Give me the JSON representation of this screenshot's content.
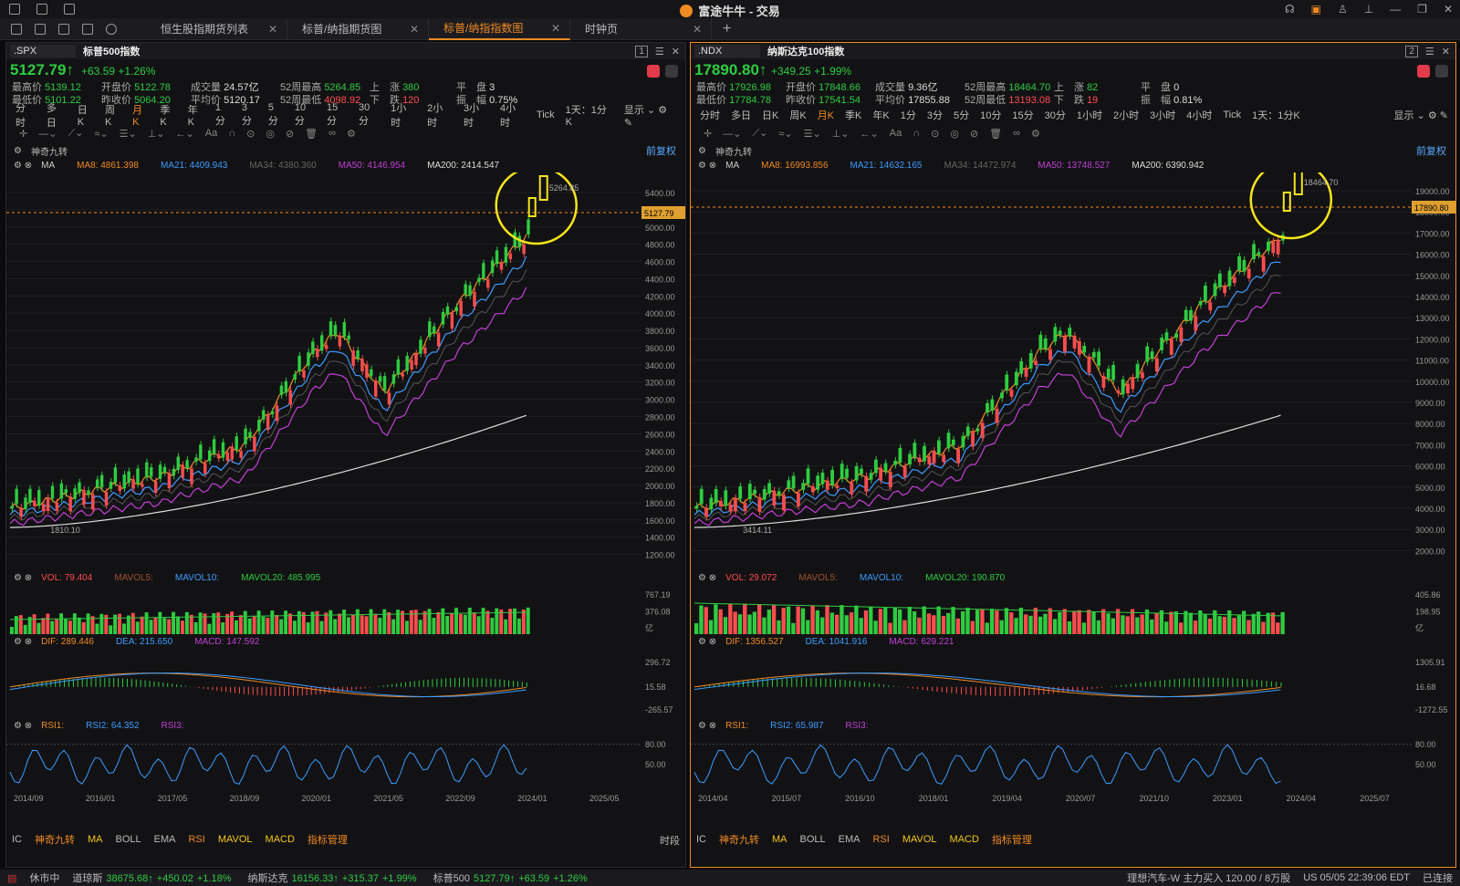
{
  "window": {
    "title": "富途牛牛 - 交易"
  },
  "tabs": [
    {
      "label": "恒生股指期货列表"
    },
    {
      "label": "标普/纳指期货图"
    },
    {
      "label": "标普/纳指指数图",
      "active": true
    },
    {
      "label": "时钟页"
    }
  ],
  "panels": [
    {
      "num": "1",
      "code": ".SPX",
      "name": "标普500指数",
      "price": "5127.79↑",
      "change": "+63.59",
      "pct": "+1.26%",
      "stats": [
        [
          "最高价",
          "5139.12",
          "开盘价",
          "5122.78",
          "成交量",
          "24.57亿",
          "52周最高",
          "5264.85",
          "上　涨",
          "380",
          "平　盘",
          "3"
        ],
        [
          "最低价",
          "5101.22",
          "昨收价",
          "5064.20",
          "平均价",
          "5120.17",
          "52周最低",
          "4098.92",
          "下　跌",
          "120",
          "振　幅",
          "0.75%"
        ]
      ],
      "ma": {
        "label": "MA",
        "ma8": "MA8: 4861.398",
        "ma21": "MA21: 4409.943",
        "ma34": "MA34: 4380.360",
        "ma50": "MA50: 4146.954",
        "ma200": "MA200: 2414.547"
      },
      "price_axis": [
        "5400.00",
        "5200.00",
        "5000.00",
        "4800.00",
        "4600.00",
        "4400.00",
        "4200.00",
        "4000.00",
        "3800.00",
        "3600.00",
        "3400.00",
        "3200.00",
        "3000.00",
        "2800.00",
        "2600.00",
        "2400.00",
        "2200.00",
        "2000.00",
        "1800.00",
        "1600.00",
        "1400.00",
        "1200.00"
      ],
      "last_price_tag": "5127.79",
      "high_label": "5264.85",
      "low_label": "1810.10",
      "mavol": {
        "vol": "VOL: 79.404",
        "ma5": "MAVOL5:",
        "ma10": "MAVOL10:",
        "ma20": "MAVOL20: 485.995",
        "axis": [
          "767.19",
          "376.08",
          "亿"
        ]
      },
      "macd": {
        "dif": "DIF: 289.446",
        "dea": "DEA: 215.650",
        "macd": "MACD: 147.592",
        "axis": [
          "296.72",
          "15.58",
          "-265.57"
        ]
      },
      "rsi": {
        "rsi1": "RSI1:",
        "rsi2": "RSI2: 64.352",
        "rsi3": "RSI3:",
        "axis": [
          "80.00",
          "50.00"
        ]
      },
      "dates": [
        "2014/09",
        "2016/01",
        "2017/05",
        "2018/09",
        "2020/01",
        "2021/05",
        "2022/09",
        "2024/01",
        "2025/05"
      ]
    },
    {
      "num": "2",
      "code": ".NDX",
      "name": "纳斯达克100指数",
      "price": "17890.80↑",
      "change": "+349.25",
      "pct": "+1.99%",
      "stats": [
        [
          "最高价",
          "17926.98",
          "开盘价",
          "17848.66",
          "成交量",
          "9.36亿",
          "52周最高",
          "18464.70",
          "上　涨",
          "82",
          "平　盘",
          "0"
        ],
        [
          "最低价",
          "17784.78",
          "昨收价",
          "17541.54",
          "平均价",
          "17855.88",
          "52周最低",
          "13193.08",
          "下　跌",
          "19",
          "振　幅",
          "0.81%"
        ]
      ],
      "ma": {
        "label": "MA",
        "ma8": "MA8: 16993.856",
        "ma21": "MA21: 14632.165",
        "ma34": "MA34: 14472.974",
        "ma50": "MA50: 13748.527",
        "ma200": "MA200: 6390.942"
      },
      "price_axis": [
        "19000.00",
        "18000.00",
        "17000.00",
        "16000.00",
        "15000.00",
        "14000.00",
        "13000.00",
        "12000.00",
        "11000.00",
        "10000.00",
        "9000.00",
        "8000.00",
        "7000.00",
        "6000.00",
        "5000.00",
        "4000.00",
        "3000.00",
        "2000.00"
      ],
      "last_price_tag": "17890.80",
      "high_label": "18464.70",
      "low_label": "3414.11",
      "mavol": {
        "vol": "VOL: 29.072",
        "ma5": "MAVOL5:",
        "ma10": "MAVOL10:",
        "ma20": "MAVOL20: 190.870",
        "axis": [
          "405.86",
          "198.95",
          "亿"
        ]
      },
      "macd": {
        "dif": "DIF: 1356.527",
        "dea": "DEA: 1041.916",
        "macd": "MACD: 629.221",
        "axis": [
          "1305.91",
          "16.68",
          "-1272.55"
        ]
      },
      "rsi": {
        "rsi1": "RSI1:",
        "rsi2": "RSI2: 65.987",
        "rsi3": "RSI3:",
        "axis": [
          "80.00",
          "50.00"
        ]
      },
      "dates": [
        "2014/04",
        "2015/07",
        "2016/10",
        "2018/01",
        "2019/04",
        "2020/07",
        "2021/10",
        "2023/01",
        "2024/04",
        "2025/07"
      ]
    }
  ],
  "periods": [
    "分时",
    "多日",
    "日K",
    "周K",
    "月K",
    "季K",
    "年K",
    "1分",
    "3分",
    "5分",
    "10分",
    "15分",
    "30分",
    "1小时",
    "2小时",
    "3小时",
    "4小时",
    "Tick",
    "1天：1分K"
  ],
  "periods_right": "显示",
  "indicator_tabs": [
    "IC",
    "神奇九转",
    "MA",
    "BOLL",
    "EMA",
    "RSI",
    "MAVOL",
    "MACD",
    "指标管理"
  ],
  "bottom_right": "时段",
  "ind_name": "神奇九转",
  "fq": "前复权",
  "status": {
    "market": "休市中",
    "items": [
      [
        "道琼斯",
        "38675.68↑",
        "+450.02",
        "+1.18%"
      ],
      [
        "纳斯达克",
        "16156.33↑",
        "+315.37",
        "+1.99%"
      ],
      [
        "标普500",
        "5127.79↑",
        "+63.59",
        "+1.26%"
      ]
    ],
    "right": "理想汽车-W  主力买入 120.00 / 8万股",
    "time": "US 05/05 22:39:06 EDT",
    "conn": "已连接"
  }
}
